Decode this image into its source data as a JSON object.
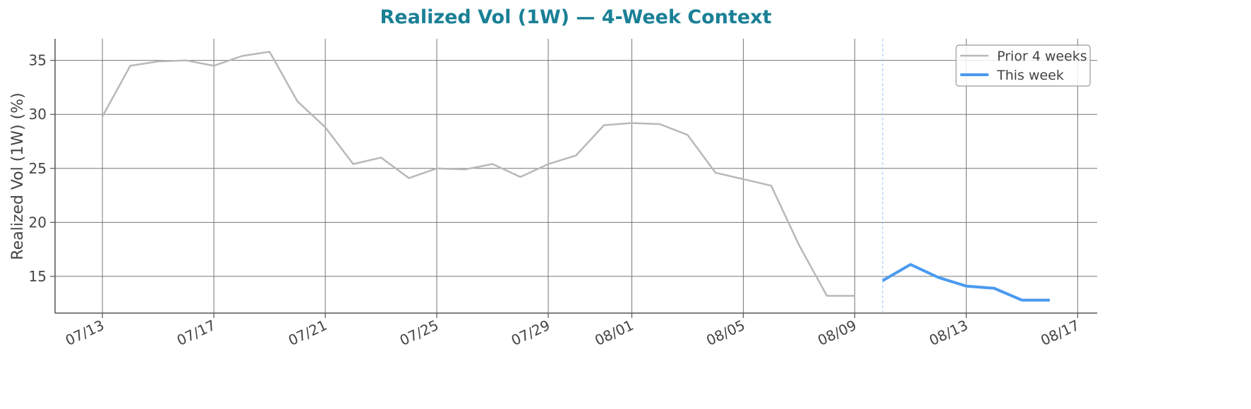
{
  "chart_data": {
    "type": "line",
    "title": "Realized Vol (1W) — 4-Week Context",
    "y_label": "Realized Vol (1W) (%)",
    "series": [
      {
        "name": "Prior 4 weeks",
        "color": "#b8b8b8",
        "width": 2.5,
        "x": [
          "07/13",
          "07/14",
          "07/15",
          "07/16",
          "07/17",
          "07/18",
          "07/19",
          "07/20",
          "07/21",
          "07/22",
          "07/23",
          "07/24",
          "07/25",
          "07/26",
          "07/27",
          "07/28",
          "07/29",
          "07/30",
          "07/31",
          "08/01",
          "08/02",
          "08/03",
          "08/04",
          "08/05",
          "08/06",
          "08/07",
          "08/08",
          "08/09"
        ],
        "values": [
          29.8,
          34.5,
          34.9,
          35.0,
          34.5,
          35.4,
          35.8,
          31.2,
          28.8,
          25.4,
          26.0,
          24.1,
          25.0,
          24.9,
          25.4,
          24.2,
          25.4,
          26.2,
          29.0,
          29.2,
          29.1,
          28.1,
          24.6,
          24.0,
          23.4,
          17.9,
          13.2,
          13.2
        ]
      },
      {
        "name": "This week",
        "color": "#4a9af0",
        "width": 4,
        "x": [
          "08/10",
          "08/11",
          "08/12",
          "08/13",
          "08/14",
          "08/15",
          "08/16"
        ],
        "values": [
          14.6,
          16.1,
          14.9,
          14.1,
          13.9,
          12.8,
          12.8
        ]
      }
    ],
    "xticks": [
      "07/13",
      "07/17",
      "07/21",
      "07/25",
      "07/29",
      "08/01",
      "08/05",
      "08/09",
      "08/13",
      "08/17"
    ],
    "ylim": [
      11.6,
      37.0
    ],
    "yticks": [
      15,
      20,
      25,
      30,
      35
    ],
    "grid": true,
    "legend": "upper right"
  }
}
